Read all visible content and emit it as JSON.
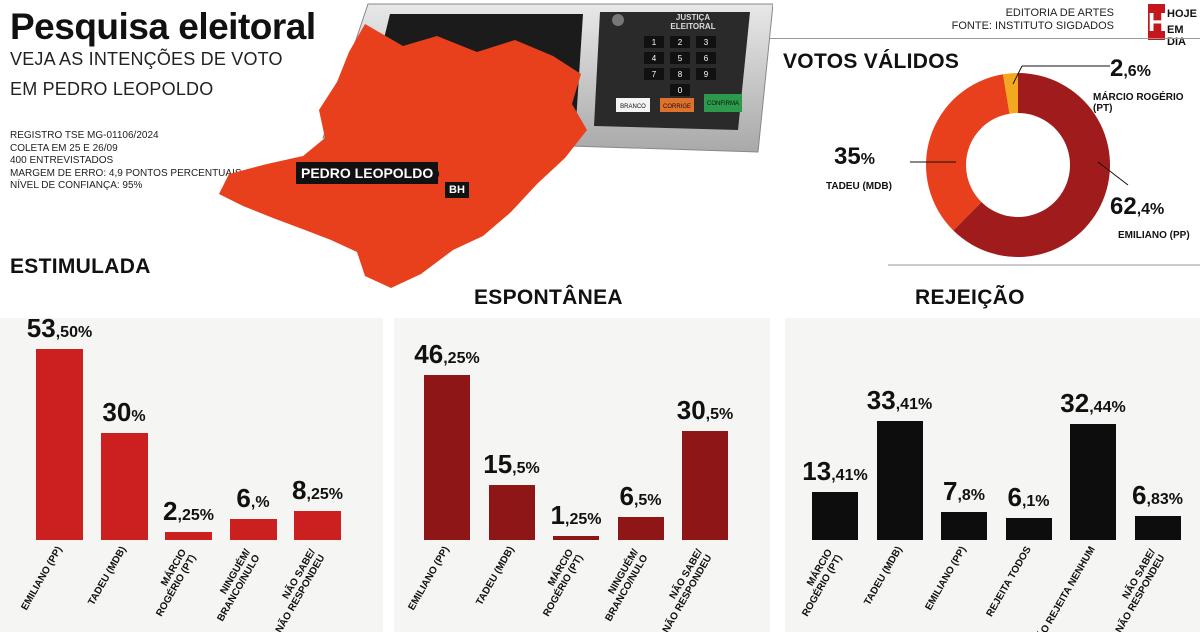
{
  "header": {
    "title": "Pesquisa eleitoral",
    "subtitle_line1": "VEJA AS INTENÇÕES DE VOTO",
    "subtitle_line2": "EM PEDRO LEOPOLDO",
    "meta": [
      "REGISTRO TSE MG-01106/2024",
      "COLETA EM 25 E 26/09",
      "400 ENTREVISTADOS",
      "MARGEM DE ERRO: 4,9 PONTOS PERCENTUAIS",
      "NÍVEL DE CONFIANÇA: 95%"
    ],
    "credit_line1": "EDITORIA DE ARTES",
    "credit_line2": "FONTE: INSTITUTO SIGDADOS",
    "logo_letter": "H",
    "logo_word1": "HOJE",
    "logo_word2": "EM DIA"
  },
  "map": {
    "city_label": "PEDRO LEOPOLDO",
    "bh_label": "BH",
    "fill_color": "#e8401c"
  },
  "urn": {
    "brand1": "JUSTIÇA",
    "brand2": "ELEITORAL",
    "keys": [
      "1",
      "2",
      "3",
      "4",
      "5",
      "6",
      "7",
      "8",
      "9",
      "0"
    ],
    "btn_branco": "BRANCO",
    "btn_corrige": "CORRIGE",
    "btn_confirma": "CONFIRMA"
  },
  "chart_data": [
    {
      "type": "pie",
      "title": "VOTOS VÁLIDOS",
      "slices": [
        {
          "label": "EMILIANO (PP)",
          "value": 62.4,
          "int": "62",
          "dec": ",4%",
          "color": "#a01b1b"
        },
        {
          "label": "TADEU (MDB)",
          "value": 35,
          "int": "35",
          "dec": "%",
          "color": "#e8401c"
        },
        {
          "label": "MÁRCIO ROGÉRIO (PT)",
          "value": 2.6,
          "int": "2",
          "dec": ",6%",
          "color": "#f2a91f"
        }
      ]
    },
    {
      "type": "bar",
      "title": "ESTIMULADA",
      "color": "#cc1f1f",
      "ylim": [
        0,
        55
      ],
      "categories": [
        "EMILIANO (PP)",
        "TADEU (MDB)",
        "MÁRCIO\nROGÉRIO (PT)",
        "NINGUÉM/\nBRANCO/NULO",
        "NÃO SABE/\nNÃO RESPONDEU"
      ],
      "values": [
        53.5,
        30,
        2.25,
        6,
        8.25
      ],
      "label_int": [
        "53",
        "30",
        "2",
        "6",
        "8"
      ],
      "label_dec": [
        ",50%",
        "%",
        ",25%",
        ",%",
        ",25%"
      ]
    },
    {
      "type": "bar",
      "title": "ESPONTÂNEA",
      "color": "#8e1616",
      "ylim": [
        0,
        55
      ],
      "categories": [
        "EMILIANO (PP)",
        "TADEU (MDB)",
        "MÁRCIO\nROGÉRIO (PT)",
        "NINGUÉM/\nBRANCO/NULO",
        "NÃO SABE/\nNÃO RESPONDEU"
      ],
      "values": [
        46.25,
        15.5,
        1.25,
        6.5,
        30.5
      ],
      "label_int": [
        "46",
        "15",
        "1",
        "6",
        "30"
      ],
      "label_dec": [
        ",25%",
        ",5%",
        ",25%",
        ",5%",
        ",5%"
      ]
    },
    {
      "type": "bar",
      "title": "REJEIÇÃO",
      "color": "#0d0d0d",
      "ylim": [
        0,
        55
      ],
      "categories": [
        "MÁRCIO\nROGÉRIO (PT)",
        "TADEU (MDB)",
        "EMILIANO (PP)",
        "REJEITA TODOS",
        "NÃO REJEITA NENHUM",
        "NÃO SABE/\nNÃO RESPONDEU"
      ],
      "values": [
        13.41,
        33.41,
        7.8,
        6.1,
        32.44,
        6.83
      ],
      "label_int": [
        "13",
        "33",
        "7",
        "6",
        "32",
        "6"
      ],
      "label_dec": [
        ",41%",
        ",41%",
        ",8%",
        ",1%",
        ",44%",
        ",83%"
      ]
    }
  ]
}
